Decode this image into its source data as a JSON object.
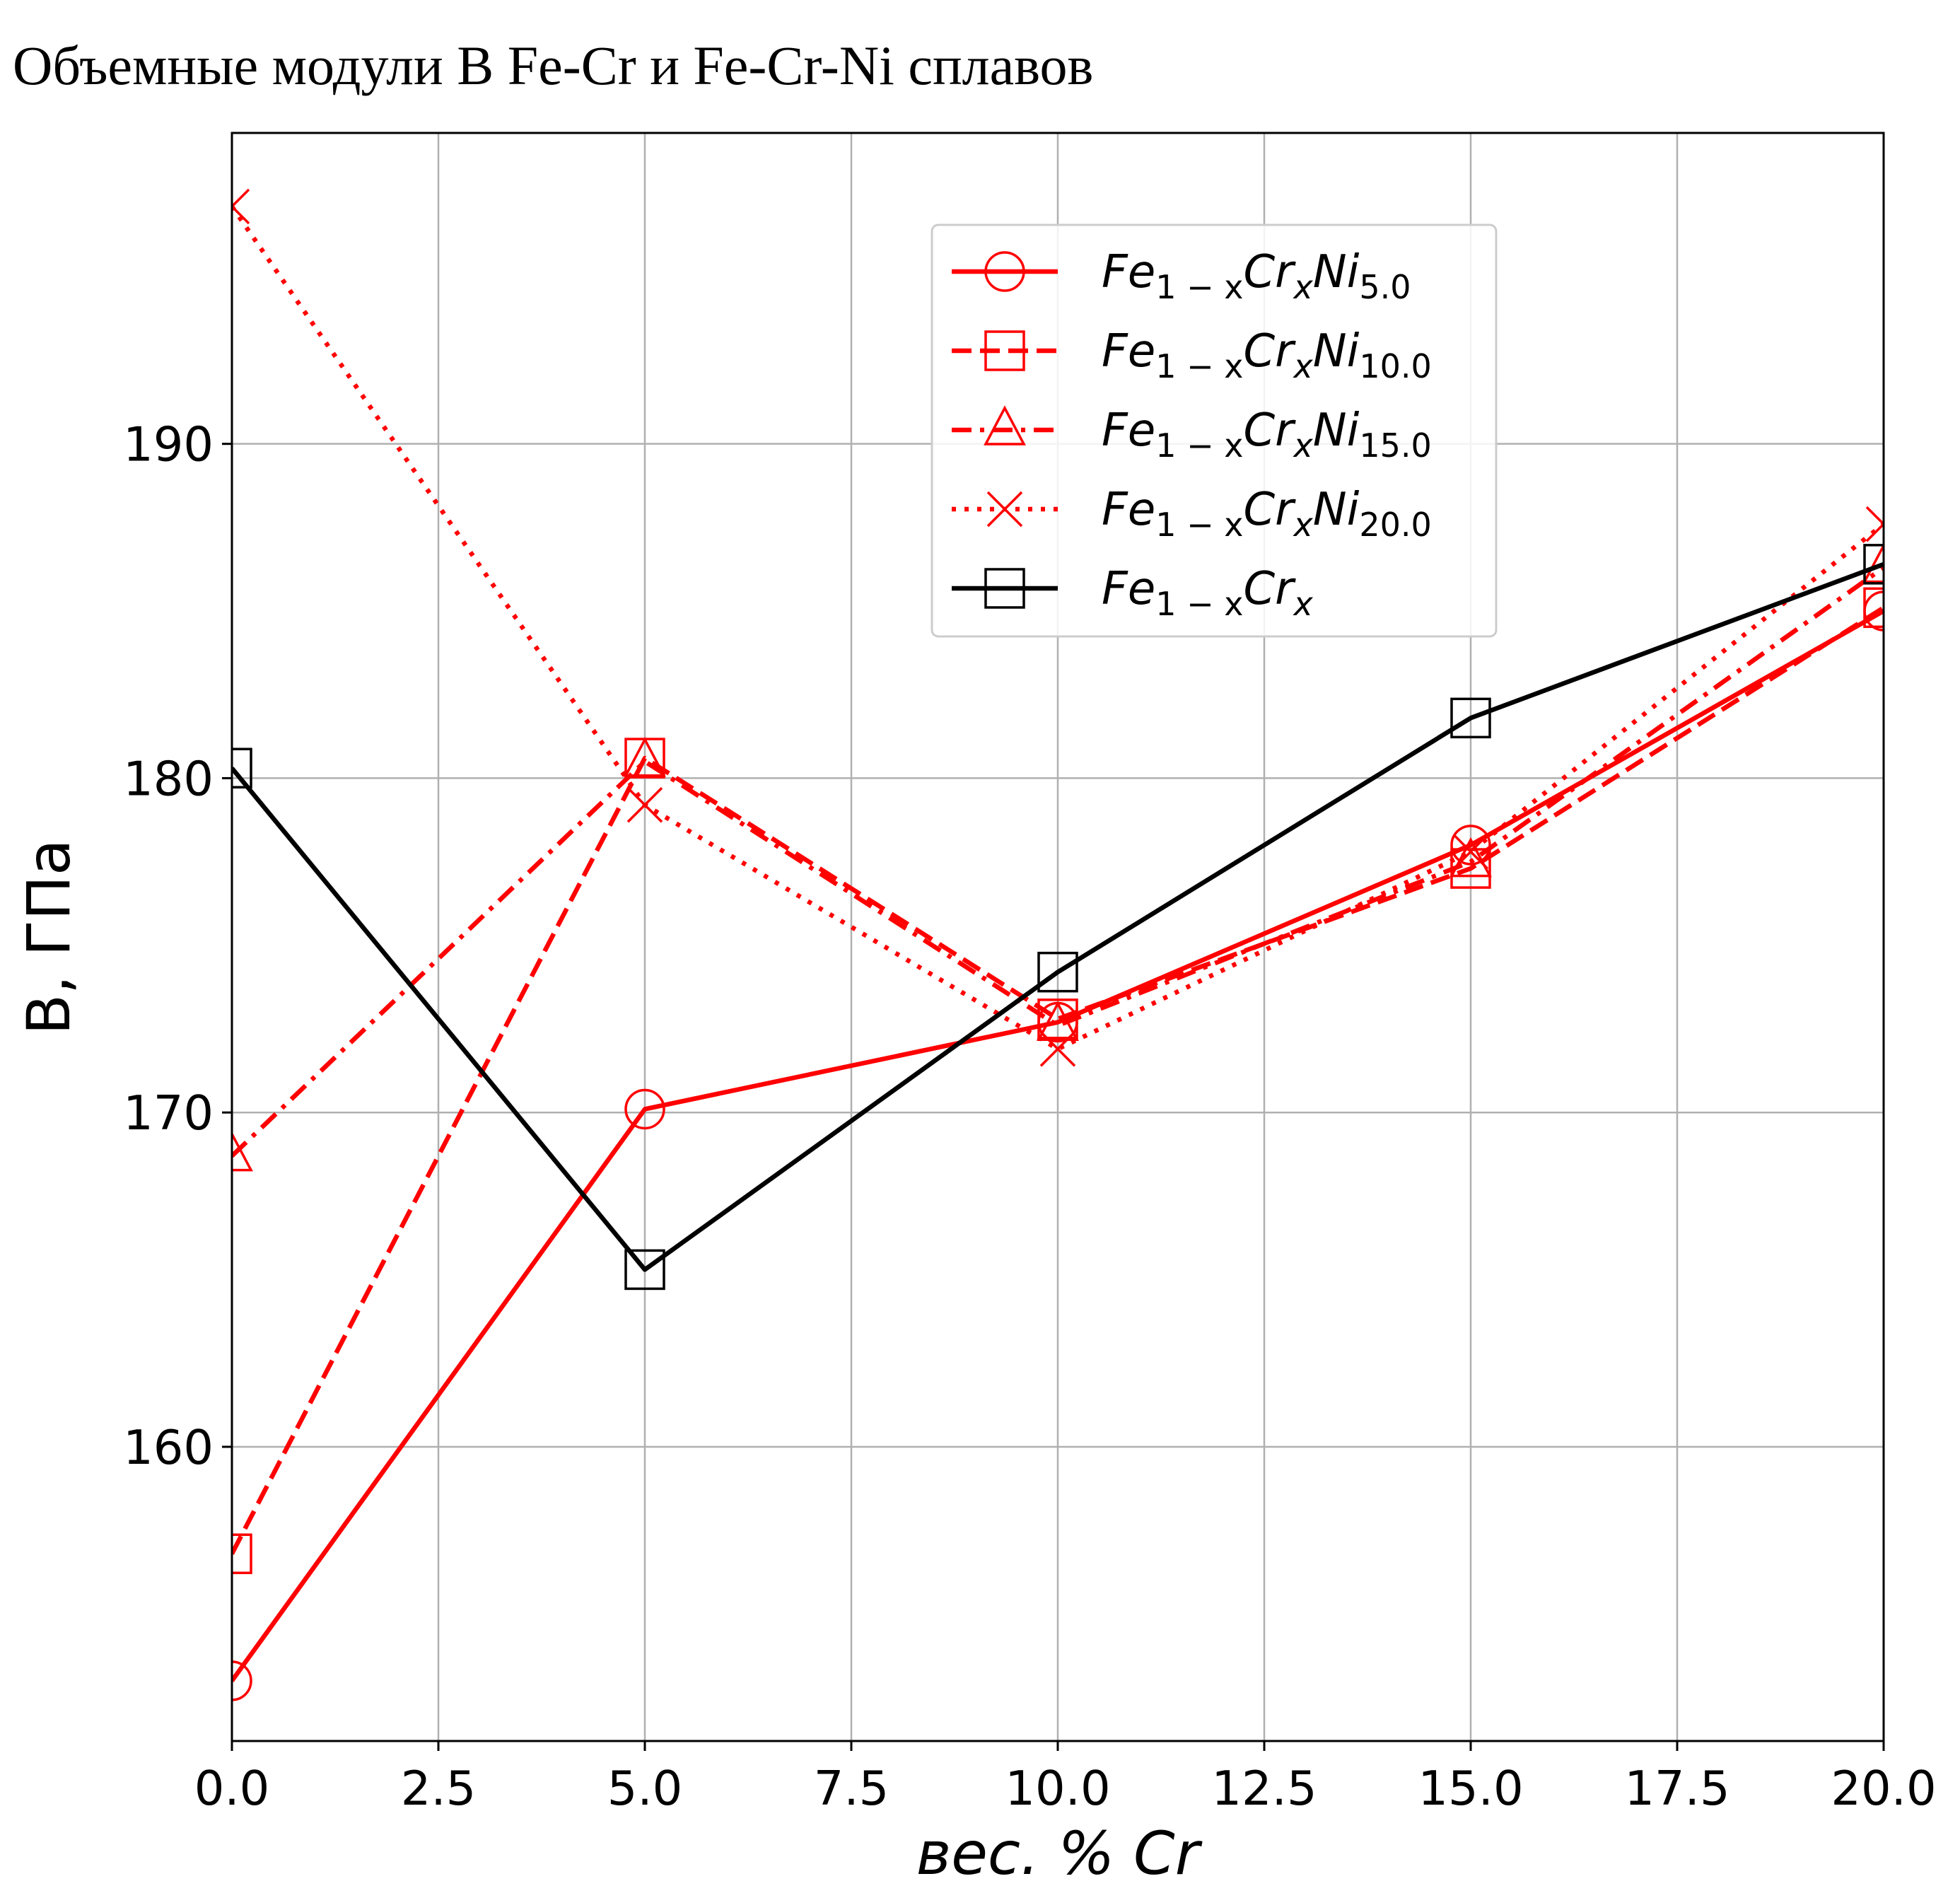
{
  "title": "Объемные модули В Fe-Cr и Fe-Cr-Ni сплавов",
  "chart_data": {
    "type": "line",
    "xlabel": "вес. % Cr",
    "ylabel": "B, ГПа",
    "xlim": [
      0,
      20
    ],
    "ylim": [
      151.2,
      199.3
    ],
    "x_ticks": [
      "0.0",
      "2.5",
      "5.0",
      "7.5",
      "10.0",
      "12.5",
      "15.0",
      "17.5",
      "20.0"
    ],
    "y_ticks": [
      "160",
      "170",
      "180",
      "190"
    ],
    "x_tick_values": [
      0,
      2.5,
      5,
      7.5,
      10,
      12.5,
      15,
      17.5,
      20
    ],
    "y_tick_values": [
      160,
      170,
      180,
      190
    ],
    "grid": true,
    "legend_position": "upper-center",
    "x": [
      0,
      5,
      10,
      15,
      20
    ],
    "series": [
      {
        "name": "Fe1−xCrxNi5.0",
        "base": "Fe",
        "sub1": "1 − x",
        "mid": "Cr",
        "sub2": "x",
        "mid2": "Ni",
        "sub3": "5.0",
        "values": [
          153.0,
          170.1,
          172.7,
          178.0,
          185.0
        ],
        "color": "#ff0000",
        "linestyle": "solid",
        "marker": "circle"
      },
      {
        "name": "Fe1−xCrxNi10.0",
        "base": "Fe",
        "sub1": "1 − x",
        "mid": "Cr",
        "sub2": "x",
        "mid2": "Ni",
        "sub3": "10.0",
        "values": [
          156.8,
          180.6,
          172.8,
          177.3,
          185.1
        ],
        "color": "#ff0000",
        "linestyle": "dashed",
        "marker": "square"
      },
      {
        "name": "Fe1−xCrxNi15.0",
        "base": "Fe",
        "sub1": "1 − x",
        "mid": "Cr",
        "sub2": "x",
        "mid2": "Ni",
        "sub3": "15.0",
        "values": [
          168.7,
          180.5,
          172.6,
          177.5,
          186.3
        ],
        "color": "#ff0000",
        "linestyle": "dashdot",
        "marker": "triangle"
      },
      {
        "name": "Fe1−xCrxNi20.0",
        "base": "Fe",
        "sub1": "1 − x",
        "mid": "Cr",
        "sub2": "x",
        "mid2": "Ni",
        "sub3": "20.0",
        "values": [
          197.1,
          179.2,
          171.9,
          177.8,
          187.6
        ],
        "color": "#ff0000",
        "linestyle": "dotted",
        "marker": "x"
      },
      {
        "name": "Fe1−xCrx",
        "base": "Fe",
        "sub1": "1 − x",
        "mid": "Cr",
        "sub2": "x",
        "mid2": "",
        "sub3": "",
        "values": [
          180.3,
          165.3,
          174.2,
          181.8,
          186.4
        ],
        "color": "#000000",
        "linestyle": "solid",
        "marker": "square"
      }
    ]
  }
}
